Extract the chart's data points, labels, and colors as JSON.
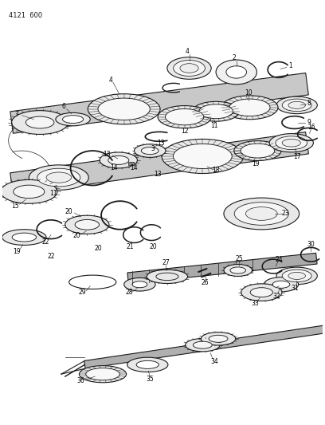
{
  "title": "4121  600",
  "bg_color": "#ffffff",
  "line_color": "#1a1a1a",
  "fig_width": 4.08,
  "fig_height": 5.33,
  "dpi": 100,
  "shaft_color": "#d0d0d0",
  "gear_fill": "#e8e8e8",
  "gear_inner_fill": "#f5f5f5"
}
